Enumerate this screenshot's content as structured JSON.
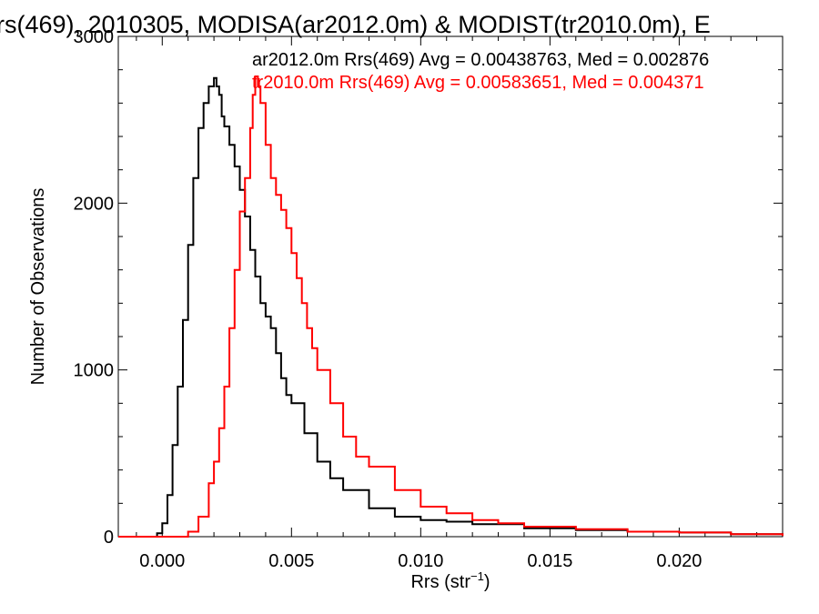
{
  "chart_data": {
    "type": "line",
    "title": "rs(469), 2010305, MODISA(ar2012.0m) & MODIST(tr2010.0m), E",
    "xlabel": "Rrs (str",
    "xlabel_sup": "−1",
    "xlabel_close": ")",
    "ylabel": "Number of Observations",
    "xlim": [
      -0.0017,
      0.024
    ],
    "ylim": [
      0,
      3000
    ],
    "xticks": [
      0.0,
      0.005,
      0.01,
      0.015,
      0.02
    ],
    "xtick_labels": [
      "0.000",
      "0.005",
      "0.010",
      "0.015",
      "0.020"
    ],
    "yticks": [
      0,
      1000,
      2000,
      3000
    ],
    "ytick_labels": [
      "0",
      "1000",
      "2000",
      "3000"
    ],
    "grid": false,
    "series": [
      {
        "name": "ar2012.0m Rrs(469) Avg = 0.00438763, Med = 0.002876",
        "color": "#000000",
        "x": [
          -0.0017,
          -0.0005,
          -0.0002,
          0.0,
          0.0002,
          0.0004,
          0.0006,
          0.0008,
          0.001,
          0.0012,
          0.0014,
          0.0016,
          0.0018,
          0.002,
          0.0021,
          0.0022,
          0.0023,
          0.0024,
          0.0026,
          0.0028,
          0.003,
          0.0032,
          0.0034,
          0.0036,
          0.0038,
          0.004,
          0.0042,
          0.0044,
          0.0046,
          0.0048,
          0.005,
          0.0055,
          0.006,
          0.0065,
          0.007,
          0.008,
          0.009,
          0.01,
          0.011,
          0.012,
          0.014,
          0.016,
          0.018,
          0.02,
          0.022,
          0.024
        ],
        "y": [
          0,
          0,
          20,
          80,
          250,
          550,
          900,
          1300,
          1750,
          2150,
          2450,
          2600,
          2700,
          2750,
          2700,
          2650,
          2520,
          2460,
          2350,
          2220,
          2080,
          1920,
          1720,
          1560,
          1400,
          1320,
          1250,
          1100,
          950,
          850,
          800,
          620,
          450,
          350,
          280,
          170,
          120,
          100,
          90,
          75,
          50,
          40,
          30,
          25,
          15,
          5
        ]
      },
      {
        "name": "tr2010.0m Rrs(469) Avg = 0.00583651, Med = 0.004371",
        "color": "#ff0000",
        "x": [
          -0.0017,
          0.0005,
          0.001,
          0.0014,
          0.0018,
          0.002,
          0.0022,
          0.0024,
          0.0026,
          0.0028,
          0.003,
          0.0032,
          0.0034,
          0.0035,
          0.0036,
          0.0037,
          0.0038,
          0.004,
          0.0042,
          0.0044,
          0.0046,
          0.0048,
          0.005,
          0.0052,
          0.0054,
          0.0056,
          0.0058,
          0.006,
          0.0065,
          0.007,
          0.0075,
          0.008,
          0.009,
          0.01,
          0.011,
          0.012,
          0.013,
          0.014,
          0.016,
          0.018,
          0.02,
          0.022,
          0.024
        ],
        "y": [
          0,
          0,
          30,
          120,
          320,
          450,
          650,
          900,
          1250,
          1600,
          1950,
          2150,
          2450,
          2650,
          2760,
          2700,
          2600,
          2350,
          2150,
          2050,
          1960,
          1850,
          1700,
          1550,
          1400,
          1250,
          1130,
          1000,
          800,
          600,
          480,
          420,
          280,
          180,
          140,
          100,
          80,
          60,
          45,
          30,
          25,
          15,
          5
        ]
      }
    ]
  }
}
